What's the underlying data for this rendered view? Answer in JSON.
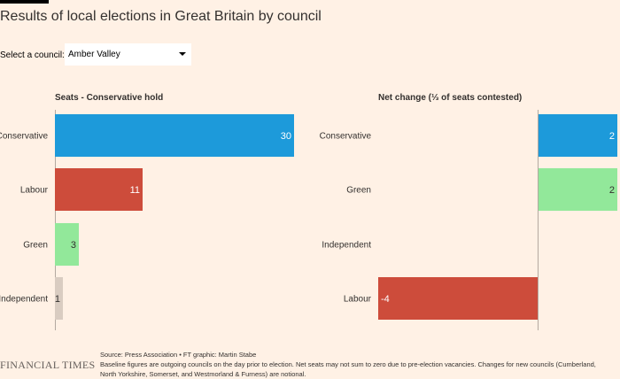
{
  "header": {
    "title": "Results of local elections in Great Britain by council"
  },
  "selector": {
    "label": "Select a council:",
    "value": "Amber Valley"
  },
  "colors": {
    "Conservative": "#1d9ada",
    "Labour": "#cd4c3b",
    "Green": "#92e89a",
    "Independent": "#d9ccc1",
    "background": "#fff1e5"
  },
  "icons": {
    "dropdown": "caret-down-icon"
  },
  "chart_data": [
    {
      "type": "bar",
      "orientation": "horizontal",
      "title": "Seats - Conservative hold",
      "categories": [
        "Conservative",
        "Labour",
        "Green",
        "Independent"
      ],
      "values": [
        30,
        11,
        3,
        1
      ],
      "xlim": [
        0,
        30
      ],
      "grid": false
    },
    {
      "type": "bar",
      "orientation": "horizontal",
      "title": "Net change (⅓ of seats contested)",
      "categories": [
        "Conservative",
        "Green",
        "Independent",
        "Labour"
      ],
      "values": [
        2,
        2,
        0,
        -4
      ],
      "value_labels": [
        "2",
        "2",
        "",
        "-4"
      ],
      "xlim": [
        -4,
        2
      ],
      "grid": false
    }
  ],
  "footer": {
    "source": "Source: Press Association • FT graphic: Martin Stabe",
    "note": "Baseline figures are outgoing councils on the day prior to election. Net seats may not sum to zero due to pre-election vacancies. Changes for new councils (Cumberland, North Yorkshire, Somerset, and Westmorland & Furness) are notional.",
    "brand": "FINANCIAL TIMES"
  }
}
